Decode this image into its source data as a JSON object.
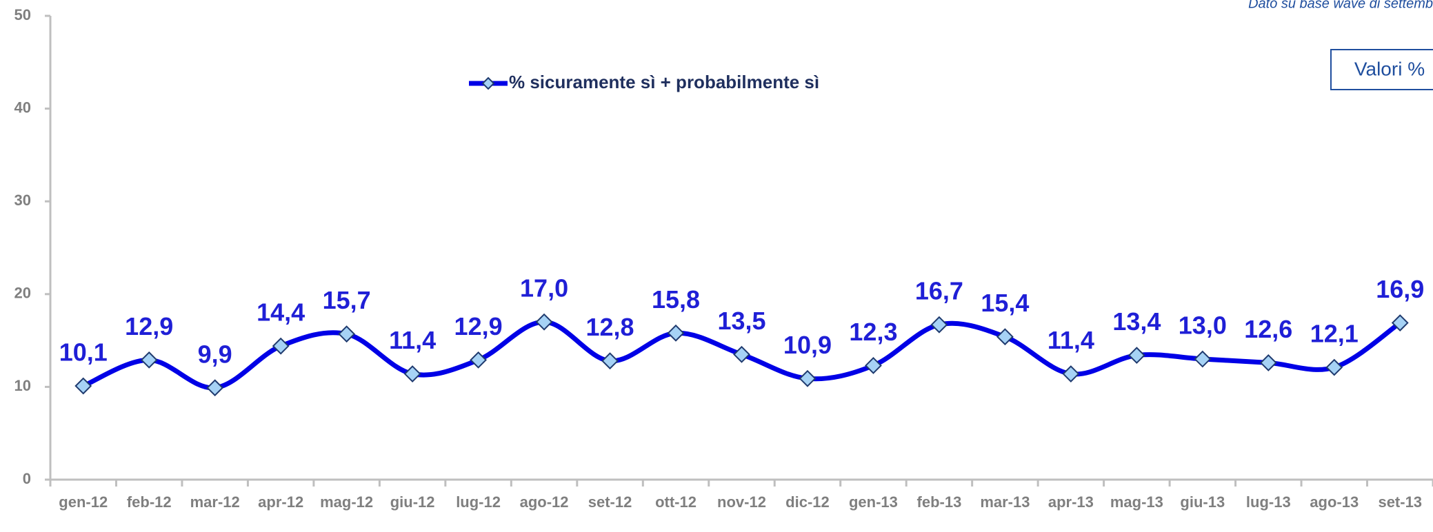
{
  "chart_data": {
    "type": "line",
    "note_text": "Dato su base wave di settemb",
    "box_label": "Valori %",
    "categories": [
      "gen-12",
      "feb-12",
      "mar-12",
      "apr-12",
      "mag-12",
      "giu-12",
      "lug-12",
      "ago-12",
      "set-12",
      "ott-12",
      "nov-12",
      "dic-12",
      "gen-13",
      "feb-13",
      "mar-13",
      "apr-13",
      "mag-13",
      "giu-13",
      "lug-13",
      "ago-13",
      "set-13"
    ],
    "series": [
      {
        "name": "% sicuramente sì + probabilmente sì",
        "color": "#0000e6",
        "values": [
          10.1,
          12.9,
          9.9,
          14.4,
          15.7,
          11.4,
          12.9,
          17.0,
          12.8,
          15.8,
          13.5,
          10.9,
          12.3,
          16.7,
          15.4,
          11.4,
          13.4,
          13.0,
          12.6,
          12.1,
          16.9
        ],
        "value_labels": [
          "10,1",
          "12,9",
          "9,9",
          "14,4",
          "15,7",
          "11,4",
          "12,9",
          "17,0",
          "12,8",
          "15,8",
          "13,5",
          "10,9",
          "12,3",
          "16,7",
          "15,4",
          "11,4",
          "13,4",
          "13,0",
          "12,6",
          "12,1",
          "16,9"
        ]
      }
    ],
    "ylim": [
      0,
      50
    ],
    "yticks": [
      0,
      10,
      20,
      30,
      40,
      50
    ],
    "legend": "top"
  }
}
